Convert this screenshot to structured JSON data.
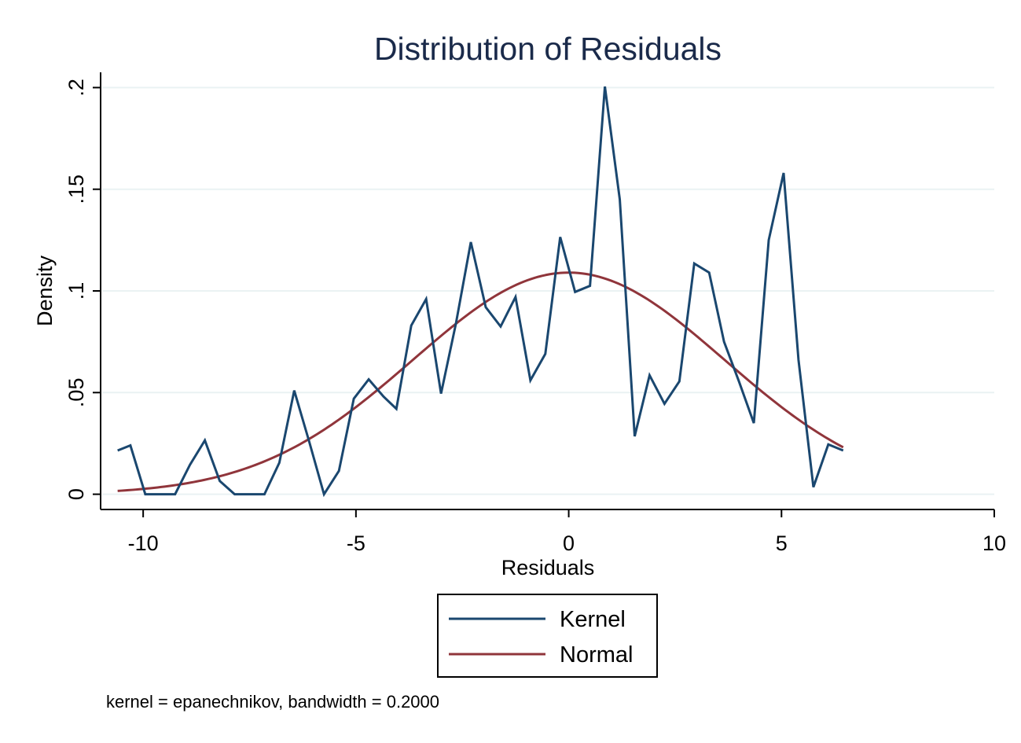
{
  "chart_data": {
    "type": "line",
    "title": "Distribution of Residuals",
    "xlabel": "Residuals",
    "ylabel": "Density",
    "xlim": [
      -11,
      10
    ],
    "ylim": [
      -0.0075,
      0.2075
    ],
    "x_ticks": [
      -10,
      -5,
      0,
      5,
      10
    ],
    "x_tick_labels": [
      "-10",
      "-5",
      "0",
      "5",
      "10"
    ],
    "y_ticks": [
      0,
      0.05,
      0.1,
      0.15,
      0.2
    ],
    "y_tick_labels": [
      "0",
      ".05",
      ".1",
      ".15",
      ".2"
    ],
    "grid": true,
    "legend_position": "bottom",
    "note": "kernel = epanechnikov, bandwidth = 0.2000",
    "series": [
      {
        "name": "Kernel",
        "color": "#1a476f",
        "x": [
          -10.6,
          -10.3,
          -9.95,
          -9.6,
          -9.25,
          -8.9,
          -8.55,
          -8.2,
          -7.85,
          -7.5,
          -7.15,
          -6.8,
          -6.45,
          -6.1,
          -5.75,
          -5.4,
          -5.05,
          -4.7,
          -4.35,
          -4.05,
          -3.7,
          -3.35,
          -3.0,
          -2.65,
          -2.3,
          -1.95,
          -1.6,
          -1.25,
          -0.9,
          -0.55,
          -0.2,
          0.15,
          0.5,
          0.85,
          1.2,
          1.55,
          1.9,
          2.25,
          2.6,
          2.95,
          3.3,
          3.65,
          4.0,
          4.35,
          4.7,
          5.05,
          5.4,
          5.75,
          6.1,
          6.45
        ],
        "y": [
          0.0215,
          0.024,
          0.0,
          0.0,
          0.0,
          0.0145,
          0.0265,
          0.0065,
          0.0,
          0.0,
          0.0,
          0.0155,
          0.051,
          0.026,
          0.0,
          0.0115,
          0.047,
          0.0565,
          0.048,
          0.042,
          0.083,
          0.096,
          0.0495,
          0.084,
          0.124,
          0.092,
          0.0825,
          0.097,
          0.056,
          0.069,
          0.1265,
          0.0995,
          0.1025,
          0.2005,
          0.145,
          0.0285,
          0.0585,
          0.0445,
          0.0555,
          0.1135,
          0.109,
          0.075,
          0.0555,
          0.035,
          0.125,
          0.158,
          0.066,
          0.0035,
          0.0245,
          0.0215
        ]
      },
      {
        "name": "Normal",
        "color": "#90353b",
        "distribution": {
          "mean": 0.0,
          "sd": 3.66,
          "scale": 1.0
        },
        "x_range": [
          -10.6,
          6.45
        ]
      }
    ]
  }
}
